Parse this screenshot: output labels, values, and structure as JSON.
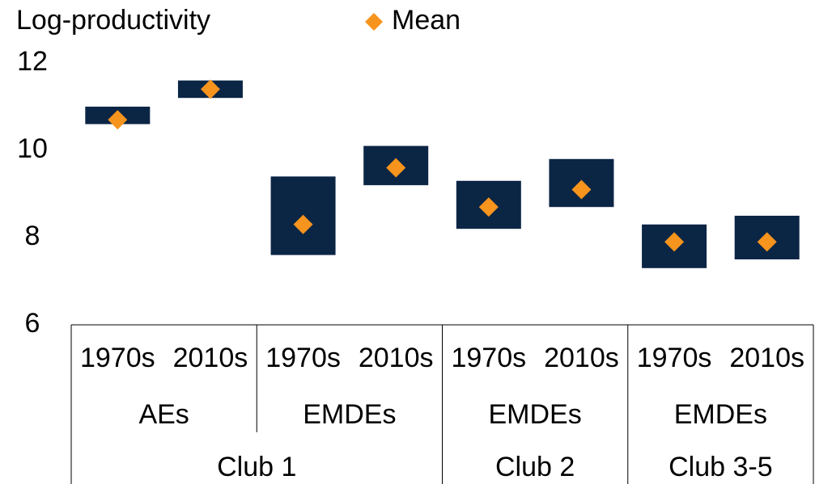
{
  "chart_data": {
    "type": "range-bar",
    "y_label": "Log-productivity",
    "ylim": [
      6,
      12
    ],
    "yticks": [
      6,
      8,
      10,
      12
    ],
    "groups": [
      {
        "label": "Club 1",
        "subgroups": [
          {
            "label": "AEs",
            "categories": [
              "1970s",
              "2010s"
            ]
          },
          {
            "label": "EMDEs",
            "categories": [
              "1970s",
              "2010s"
            ]
          }
        ]
      },
      {
        "label": "Club 2",
        "subgroups": [
          {
            "label": "EMDEs",
            "categories": [
              "1970s",
              "2010s"
            ]
          }
        ]
      },
      {
        "label": "Club 3-5",
        "subgroups": [
          {
            "label": "EMDEs",
            "categories": [
              "1970s",
              "2010s"
            ]
          }
        ]
      }
    ],
    "range_color": "#0b2545",
    "range_low": [
      10.6,
      11.2,
      7.6,
      9.2,
      8.2,
      8.7,
      7.3,
      7.5
    ],
    "range_high": [
      11.0,
      11.6,
      9.4,
      10.1,
      9.3,
      9.8,
      8.3,
      8.5
    ],
    "series": [
      {
        "name": "Mean",
        "color": "#f7941d",
        "values": [
          10.7,
          11.4,
          8.3,
          9.6,
          8.7,
          9.1,
          7.9,
          7.9
        ]
      }
    ]
  }
}
